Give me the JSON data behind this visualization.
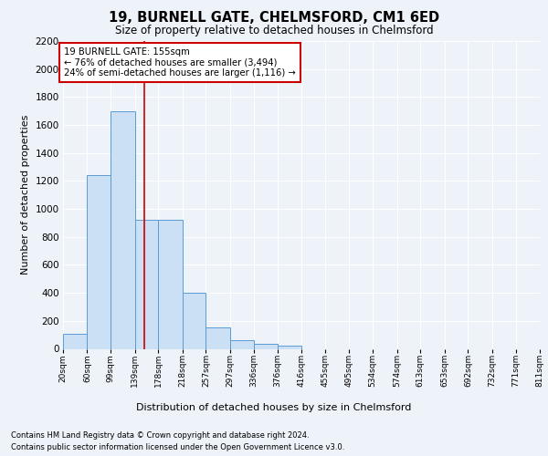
{
  "title": "19, BURNELL GATE, CHELMSFORD, CM1 6ED",
  "subtitle": "Size of property relative to detached houses in Chelmsford",
  "xlabel": "Distribution of detached houses by size in Chelmsford",
  "ylabel": "Number of detached properties",
  "footnote1": "Contains HM Land Registry data © Crown copyright and database right 2024.",
  "footnote2": "Contains public sector information licensed under the Open Government Licence v3.0.",
  "bar_edges": [
    20,
    60,
    99,
    139,
    178,
    218,
    257,
    297,
    336,
    376,
    416,
    455,
    495,
    534,
    574,
    613,
    653,
    692,
    732,
    771,
    811
  ],
  "bar_values": [
    110,
    1245,
    1700,
    920,
    920,
    400,
    150,
    65,
    35,
    25,
    0,
    0,
    0,
    0,
    0,
    0,
    0,
    0,
    0,
    0
  ],
  "tick_labels": [
    "20sqm",
    "60sqm",
    "99sqm",
    "139sqm",
    "178sqm",
    "218sqm",
    "257sqm",
    "297sqm",
    "336sqm",
    "376sqm",
    "416sqm",
    "455sqm",
    "495sqm",
    "534sqm",
    "574sqm",
    "613sqm",
    "653sqm",
    "692sqm",
    "732sqm",
    "771sqm",
    "811sqm"
  ],
  "property_size": 155,
  "bar_color": "#cce0f5",
  "bar_edgecolor": "#5b9bd5",
  "vline_color": "#cc0000",
  "annotation_text": "19 BURNELL GATE: 155sqm\n← 76% of detached houses are smaller (3,494)\n24% of semi-detached houses are larger (1,116) →",
  "annotation_box_color": "#ffffff",
  "annotation_border_color": "#cc0000",
  "ylim": [
    0,
    2200
  ],
  "yticks": [
    0,
    200,
    400,
    600,
    800,
    1000,
    1200,
    1400,
    1600,
    1800,
    2000,
    2200
  ],
  "background_color": "#eef2f9",
  "axes_background_color": "#eef2f9"
}
